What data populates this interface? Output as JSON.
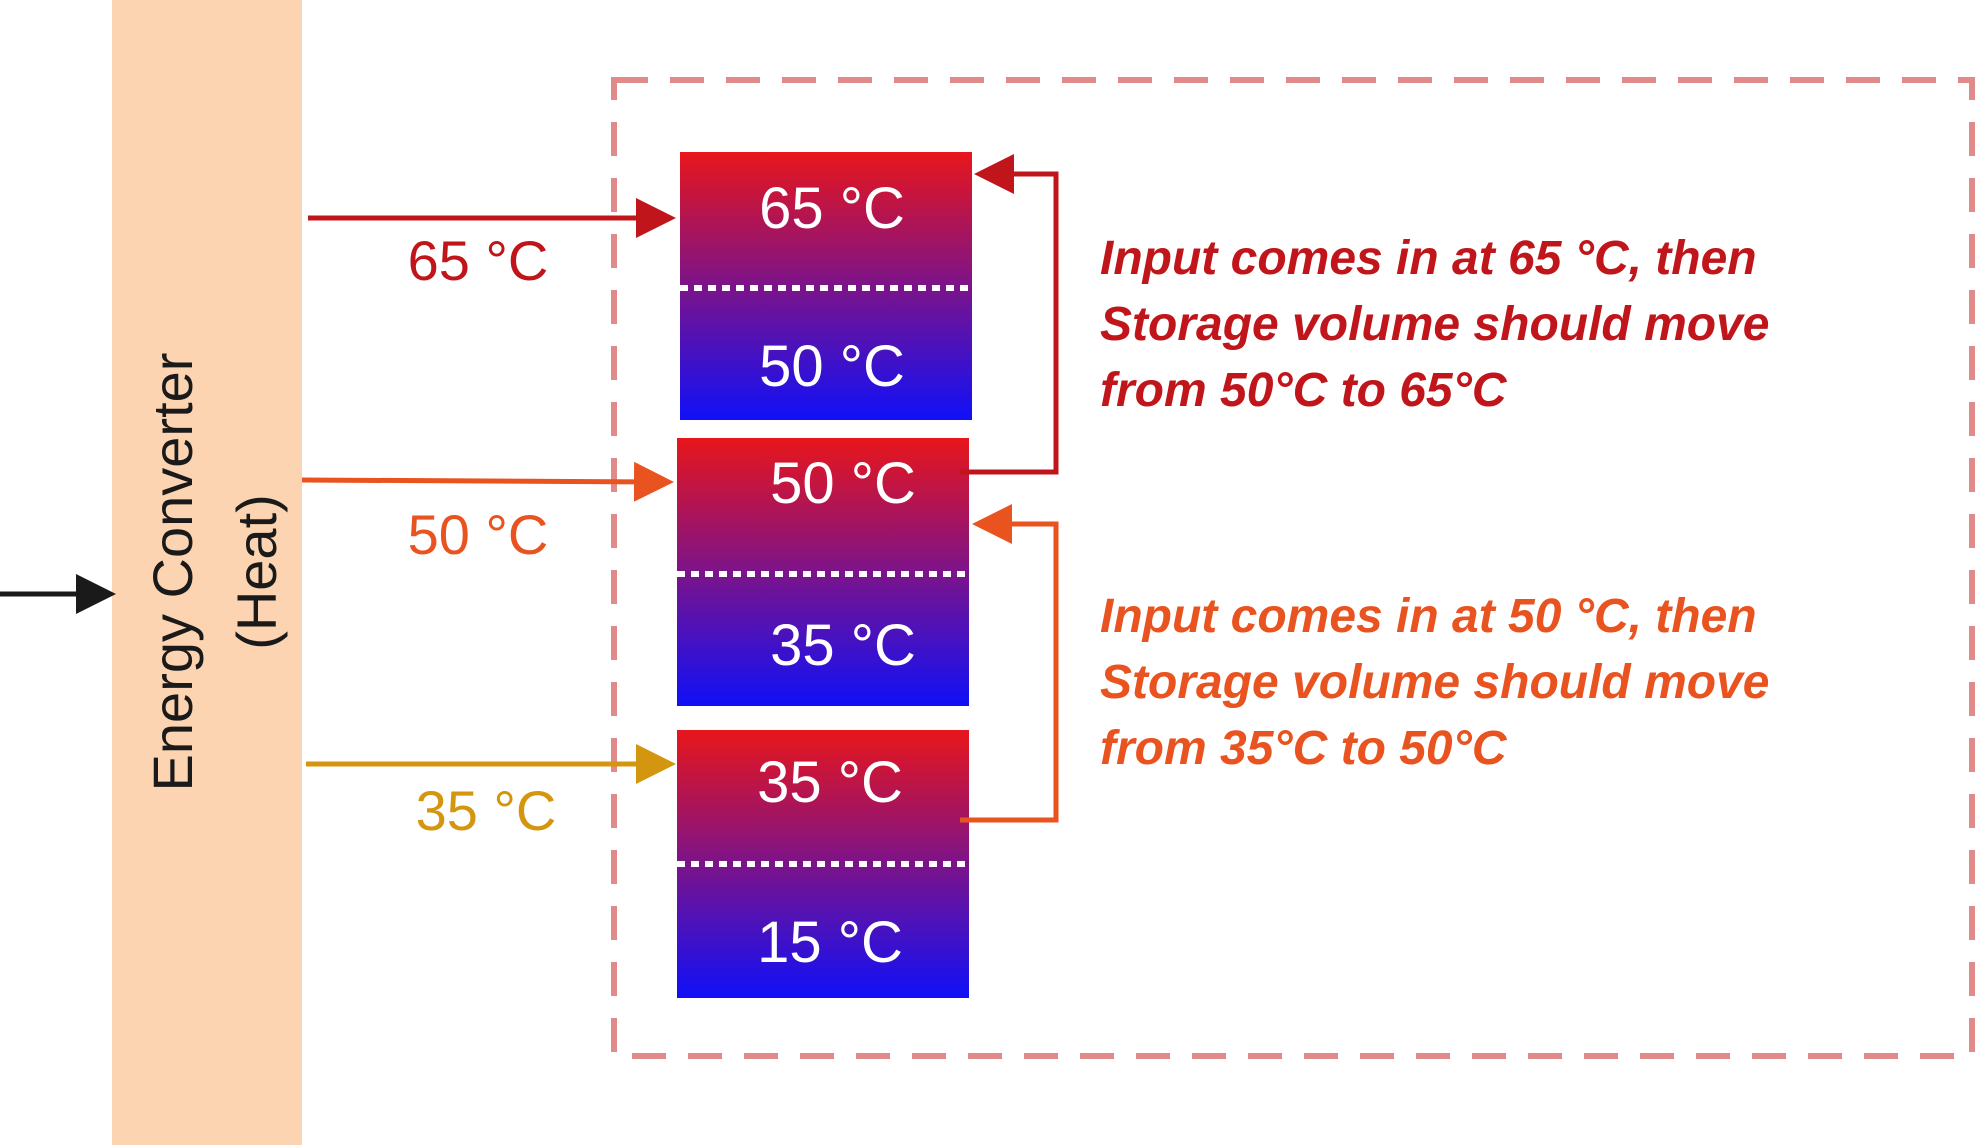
{
  "converter": {
    "label_line1": "Energy Converter",
    "label_line2": "(Heat)",
    "fill_color": "#fcd4b2"
  },
  "inputs": [
    {
      "label": "65 °C",
      "color": "#c0161b"
    },
    {
      "label": "50 °C",
      "color": "#e8531f"
    },
    {
      "label": "35 °C",
      "color": "#d4960e"
    }
  ],
  "tanks": [
    {
      "top_label": "65 °C",
      "bottom_label": "50 °C"
    },
    {
      "top_label": "50 °C",
      "bottom_label": "35 °C"
    },
    {
      "top_label": "35 °C",
      "bottom_label": "15 °C"
    }
  ],
  "tank_gradient": {
    "top_color": "#e8161b",
    "bottom_color": "#1010f8"
  },
  "storage_border_color": "#e08a8a",
  "notes": [
    {
      "lines": [
        "Input comes in at 65 °C, then",
        "Storage volume should move",
        "from 50°C to 65°C"
      ],
      "color": "#c0161b"
    },
    {
      "lines": [
        "Input comes in at 50 °C, then",
        "Storage volume should move",
        "from 35°C to 50°C"
      ],
      "color": "#e8531f"
    }
  ],
  "source_arrow_color": "#1a1a1a"
}
